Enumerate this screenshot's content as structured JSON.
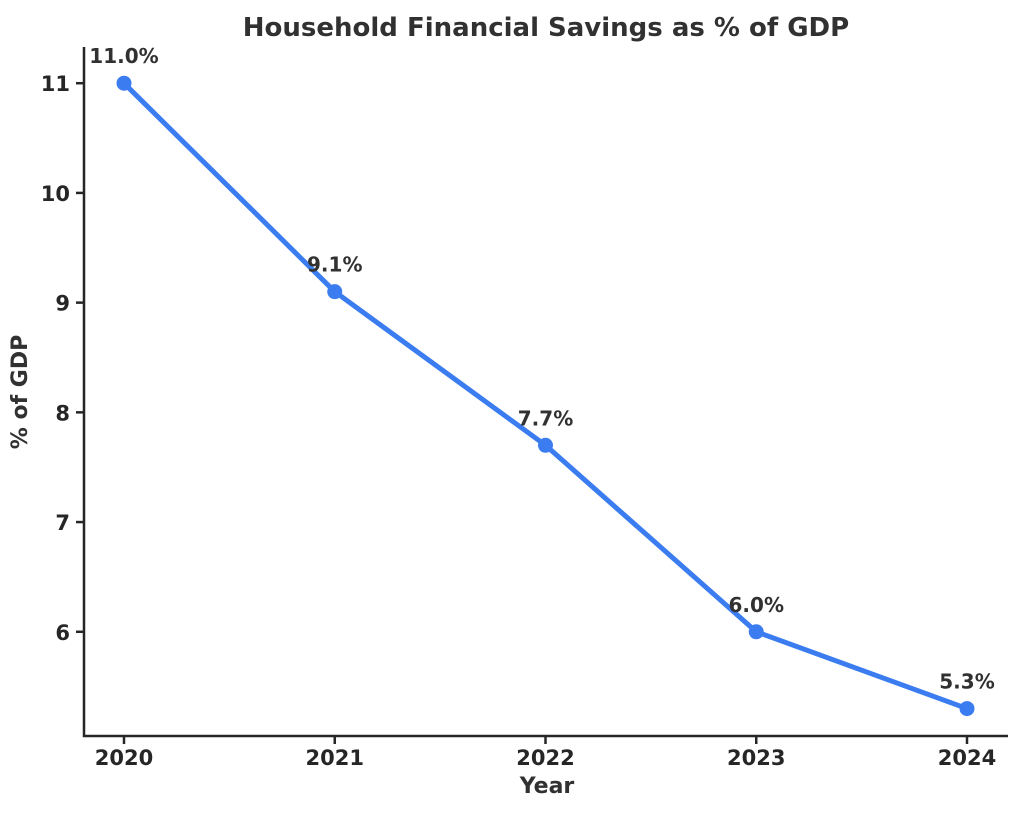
{
  "chart_data": {
    "type": "line",
    "title": "Household Financial Savings as % of GDP",
    "xlabel": "Year",
    "ylabel": "% of GDP",
    "categories": [
      "2020",
      "2021",
      "2022",
      "2023",
      "2024"
    ],
    "series": [
      {
        "name": "Household Financial Savings as % of GDP",
        "values": [
          11.0,
          9.1,
          7.7,
          6.0,
          5.3
        ]
      }
    ],
    "point_labels": [
      "11.0%",
      "9.1%",
      "7.7%",
      "6.0%",
      "5.3%"
    ],
    "yticks": [
      6,
      7,
      8,
      9,
      10,
      11
    ],
    "ylim": [
      5.05,
      11.33
    ],
    "grid": false,
    "legend": "none",
    "marker": "circle",
    "colors": {
      "line": "#3b7df0",
      "marker": "#3b7df0",
      "text": "#313131",
      "axis": "#262626"
    }
  }
}
